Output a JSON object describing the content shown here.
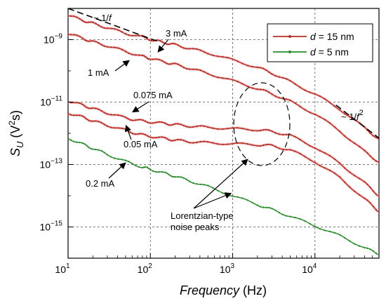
{
  "chart_data": {
    "type": "line",
    "x_scale": "log",
    "y_scale": "log",
    "xlim": [
      10,
      60000
    ],
    "ylim": [
      1e-16,
      1e-08
    ],
    "grid": true,
    "legend_position": "top-right",
    "x_ticks": [
      {
        "value": 10,
        "base": "10",
        "exp": "1"
      },
      {
        "value": 100,
        "base": "10",
        "exp": "2"
      },
      {
        "value": 1000,
        "base": "10",
        "exp": "3"
      },
      {
        "value": 10000,
        "base": "10",
        "exp": "4"
      }
    ],
    "y_ticks": [
      {
        "value": 1e-09,
        "base": "10",
        "exp": "−9"
      },
      {
        "value": 1e-11,
        "base": "10",
        "exp": "−11"
      },
      {
        "value": 1e-13,
        "base": "10",
        "exp": "−13"
      },
      {
        "value": 1e-15,
        "base": "10",
        "exp": "−15"
      }
    ],
    "xlabel": {
      "main": "Frequency",
      "unit": " (Hz)"
    },
    "ylabel": {
      "sym": "S",
      "sub": "U",
      "unit_open": " (V",
      "sup": "2",
      "unit_close": "s)"
    },
    "legend": [
      {
        "prefix": "d",
        "text": " = 15 nm",
        "color": "#b5302a"
      },
      {
        "prefix": "d",
        "text": " = 5 nm",
        "color": "#2e8b2e"
      }
    ],
    "series": [
      {
        "label": "3 mA",
        "legend_index": 0,
        "color": "#b5302a",
        "x": [
          10,
          15,
          20,
          30,
          50,
          80,
          110,
          150,
          200,
          300,
          500,
          1000,
          2000,
          3000,
          5000,
          10000,
          20000,
          40000,
          60000
        ],
        "y": [
          6e-09,
          4.2e-09,
          3.3e-09,
          2.4e-09,
          1.6e-09,
          1.2e-09,
          9.5e-10,
          8e-10,
          6.8e-10,
          5.2e-10,
          3.8e-10,
          2.2e-10,
          1.3e-10,
          8.5e-11,
          4.5e-11,
          1.8e-11,
          6e-12,
          1.5e-12,
          6.5e-13
        ]
      },
      {
        "label": "1 mA",
        "legend_index": 0,
        "color": "#b5302a",
        "x": [
          10,
          15,
          20,
          30,
          50,
          80,
          100,
          150,
          200,
          300,
          500,
          1000,
          2000,
          3000,
          5000,
          10000,
          20000,
          40000,
          60000
        ],
        "y": [
          1.6e-09,
          1.1e-09,
          8.5e-10,
          6.3e-10,
          4.2e-10,
          2.9e-10,
          2.5e-10,
          1.9e-10,
          1.6e-10,
          1.2e-10,
          8.3e-11,
          4.8e-11,
          2.7e-11,
          1.85e-11,
          1.05e-11,
          4.2e-12,
          1.2e-12,
          2.6e-13,
          1.2e-13
        ]
      },
      {
        "label": "0.075 mA",
        "legend_index": 0,
        "color": "#b5302a",
        "x": [
          10,
          15,
          20,
          30,
          50,
          70,
          100,
          150,
          200,
          300,
          500,
          1000,
          2000,
          3000,
          5000,
          10000,
          20000,
          40000,
          60000
        ],
        "y": [
          1.1e-11,
          8e-12,
          6.2e-12,
          4.5e-12,
          3.1e-12,
          2.6e-12,
          2.3e-12,
          2.05e-12,
          1.9e-12,
          1.7e-12,
          1.55e-12,
          1.4e-12,
          1.3e-12,
          1.15e-12,
          8.5e-13,
          3.6e-13,
          1.1e-13,
          2.6e-14,
          1e-14
        ]
      },
      {
        "label": "0.05 mA",
        "legend_index": 0,
        "color": "#b5302a",
        "x": [
          10,
          15,
          20,
          30,
          50,
          70,
          100,
          150,
          200,
          300,
          500,
          1000,
          2000,
          3000,
          5000,
          10000,
          20000,
          40000,
          60000
        ],
        "y": [
          4.5e-12,
          3.3e-12,
          2.5e-12,
          1.8e-12,
          1.25e-12,
          9.5e-13,
          8e-13,
          6.8e-13,
          6e-13,
          5.4e-13,
          5e-13,
          4.6e-13,
          4.3e-13,
          4e-13,
          2.9e-13,
          1.25e-13,
          3.8e-14,
          8e-15,
          3.1e-15
        ]
      },
      {
        "label": "0.2 mA",
        "legend_index": 1,
        "color": "#2e8b2e",
        "x": [
          10,
          15,
          20,
          30,
          50,
          80,
          100,
          150,
          200,
          300,
          500,
          1000,
          2000,
          3000,
          5000,
          10000,
          20000,
          40000,
          60000
        ],
        "y": [
          7e-13,
          4.5e-13,
          3.3e-13,
          2.1e-13,
          1.25e-13,
          8.3e-14,
          7e-14,
          5.2e-14,
          4.2e-14,
          3e-14,
          1.95e-14,
          1e-14,
          5.2e-15,
          3.6e-15,
          2.2e-15,
          1.1e-15,
          5.2e-16,
          2.2e-16,
          1.3e-16
        ]
      }
    ],
    "guide_lines": [
      {
        "label": "~ 1/",
        "label_tail": "f",
        "sup": "",
        "x": [
          10,
          120
        ],
        "y": [
          1e-08,
          9e-10
        ]
      },
      {
        "label": "~ 1/",
        "label_tail": "f",
        "sup": "2",
        "x": [
          18000,
          60000
        ],
        "y": [
          8e-12,
          7e-13
        ]
      }
    ],
    "annotations": [
      {
        "text": "3 mA",
        "arrow_to": [
          115,
          8.3e-10
        ]
      },
      {
        "text": "1 mA",
        "arrow_to": [
          62,
          3.8e-10
        ]
      },
      {
        "text": "0.075 mA",
        "arrow_to": [
          70,
          2.6e-12
        ]
      },
      {
        "text": "0.05 mA",
        "arrow_to": [
          55,
          1.2e-12
        ]
      },
      {
        "text": "0.2 mA",
        "arrow_to": [
          50,
          1.25e-13
        ]
      },
      {
        "text_lines": [
          "Lorentzian-type",
          "noise peaks"
        ],
        "arrow_to": [
          [
            800,
            3.5e-14
          ],
          [
            1200,
            1.2e-14
          ]
        ]
      }
    ],
    "highlight_ellipse": {
      "center": [
        2200,
        2e-12
      ],
      "note": "dashed ellipse around peaks"
    }
  }
}
